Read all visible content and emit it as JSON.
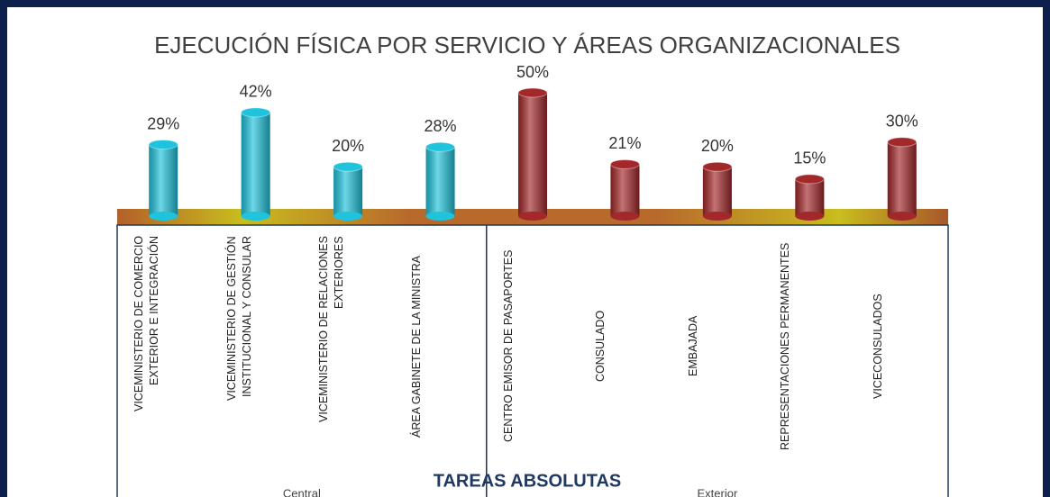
{
  "chart_data": {
    "type": "bar",
    "title": "EJECUCIÓN FÍSICA POR SERVICIO Y ÁREAS ORGANIZACIONALES",
    "x_label": "TAREAS ABSOLUTAS",
    "categories": [
      "VICEMINISTERIO DE COMERCIO EXTERIOR E INTEGRACIÓN",
      "VICEMINISTERIO DE GESTIÓN INSTITUCIONAL Y CONSULAR",
      "VICEMINISTERIO DE RELACIONES EXTERIORES",
      "ÁREA GABINETE DE LA MINISTRA",
      "CENTRO EMISOR DE PASAPORTES",
      "CONSULADO",
      "EMBAJADA",
      "REPRESENTACIONES PERMANENTES",
      "VICECONSULADOS"
    ],
    "series": [
      {
        "name": "Central",
        "color": "#1fc3dc",
        "values": [
          29,
          42,
          20,
          28,
          null,
          null,
          null,
          null,
          null
        ],
        "value_labels": [
          "29%",
          "42%",
          "20%",
          "28%",
          null,
          null,
          null,
          null,
          null
        ]
      },
      {
        "name": "Exterior",
        "color": "#a3282a",
        "values": [
          null,
          null,
          null,
          null,
          50,
          21,
          20,
          15,
          30
        ],
        "value_labels": [
          null,
          null,
          null,
          null,
          "50%",
          "21%",
          "20%",
          "15%",
          "30%"
        ]
      }
    ],
    "ylim": [
      0,
      50
    ]
  }
}
